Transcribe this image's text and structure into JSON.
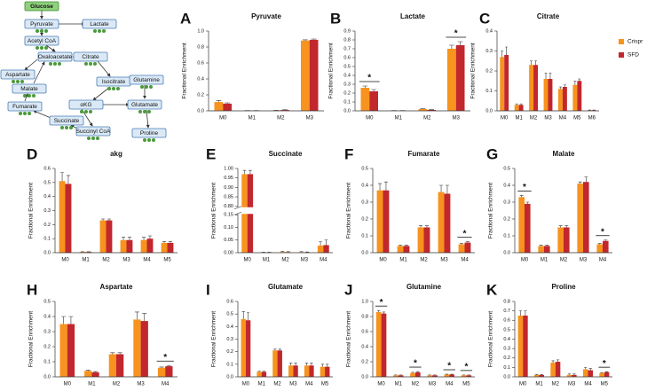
{
  "diagram": {
    "nodes": [
      "Glucose",
      "Pyruvate",
      "Lactate",
      "Acetyl CoA",
      "Oxaloacetate",
      "Citrate",
      "Aspartate",
      "Malate",
      "Isocitrate",
      "Glutamine",
      "Fumarate",
      "αKG",
      "Glutamate",
      "Succinate",
      "Succinyl CoA",
      "Proline"
    ]
  },
  "chart_data": [
    {
      "type": "bar",
      "panel": "A",
      "title": "Pyruvate",
      "y_label": "Fractional Enrichment",
      "categories": [
        "M0",
        "M1",
        "M2",
        "M3"
      ],
      "series": [
        {
          "name": "Crispr",
          "color": "#f7931e",
          "values": [
            0.11,
            0.003,
            0.005,
            0.88
          ],
          "errors": [
            0.02,
            0.001,
            0.002,
            0.01
          ]
        },
        {
          "name": "SFD",
          "color": "#c1272d",
          "values": [
            0.09,
            0.002,
            0.01,
            0.89
          ],
          "errors": [
            0.01,
            0.001,
            0.003,
            0.01
          ]
        }
      ],
      "ylim": [
        0,
        1
      ],
      "yticks": [
        {
          "value": 0,
          "label": "0.0"
        },
        0.2,
        0.4,
        0.6,
        0.8,
        {
          "value": 1,
          "label": "1.0"
        }
      ],
      "annotations": []
    },
    {
      "type": "bar",
      "panel": "B",
      "title": "Lactate",
      "y_label": "Fractional Enrichment",
      "categories": [
        "M0",
        "M1",
        "M2",
        "M3"
      ],
      "series": [
        {
          "name": "Crispr",
          "color": "#f7931e",
          "values": [
            0.26,
            0.002,
            0.02,
            0.7
          ],
          "errors": [
            0.02,
            0.001,
            0.003,
            0.04
          ]
        },
        {
          "name": "SFD",
          "color": "#c1272d",
          "values": [
            0.22,
            0.002,
            0.01,
            0.74
          ],
          "errors": [
            0.02,
            0.001,
            0.003,
            0.04
          ]
        }
      ],
      "ylim": [
        0,
        0.9
      ],
      "yticks": [
        {
          "value": 0,
          "label": "0.0"
        },
        0.1,
        0.2,
        0.3,
        0.4,
        0.5,
        0.6,
        0.7,
        0.8,
        0.9
      ],
      "annotations": [
        {
          "text": "*",
          "at": "M0"
        },
        {
          "text": "*",
          "at": "M3"
        }
      ]
    },
    {
      "type": "bar",
      "panel": "C",
      "title": "Citrate",
      "y_label": "Fractional Enrichment",
      "categories": [
        "M0",
        "M1",
        "M2",
        "M3",
        "M4",
        "M5",
        "M6"
      ],
      "series": [
        {
          "name": "Crispr",
          "color": "#f7931e",
          "values": [
            0.27,
            0.03,
            0.23,
            0.16,
            0.11,
            0.13,
            0.003
          ],
          "errors": [
            0.03,
            0.005,
            0.02,
            0.03,
            0.01,
            0.02,
            0.001
          ]
        },
        {
          "name": "SFD",
          "color": "#c1272d",
          "values": [
            0.28,
            0.03,
            0.23,
            0.16,
            0.12,
            0.15,
            0.003
          ],
          "errors": [
            0.04,
            0.005,
            0.02,
            0.03,
            0.01,
            0.01,
            0.001
          ]
        }
      ],
      "ylim": [
        0,
        0.4
      ],
      "yticks": [
        {
          "value": 0,
          "label": "0.0"
        },
        0.1,
        0.2,
        0.3,
        0.4
      ],
      "legend": "right",
      "annotations": []
    },
    {
      "type": "bar",
      "panel": "D",
      "title": "akg",
      "y_label": "Fractional Enrichment",
      "categories": [
        "M0",
        "M1",
        "M2",
        "M3",
        "M4",
        "M5"
      ],
      "series": [
        {
          "name": "Crispr",
          "color": "#f7931e",
          "values": [
            0.51,
            0.005,
            0.23,
            0.09,
            0.09,
            0.07
          ],
          "errors": [
            0.06,
            0.002,
            0.01,
            0.02,
            0.02,
            0.01
          ]
        },
        {
          "name": "SFD",
          "color": "#c1272d",
          "values": [
            0.49,
            0.005,
            0.23,
            0.09,
            0.1,
            0.07
          ],
          "errors": [
            0.06,
            0.002,
            0.01,
            0.02,
            0.02,
            0.01
          ]
        }
      ],
      "ylim": [
        0,
        0.6
      ],
      "yticks": [
        {
          "value": 0,
          "label": "0.0"
        },
        0.1,
        0.2,
        0.3,
        0.4,
        0.5,
        0.6
      ],
      "annotations": []
    },
    {
      "type": "bar",
      "panel": "E",
      "title": "Succinate",
      "y_label": "Fractional Enrichment",
      "categories": [
        "M0",
        "M1",
        "M2",
        "M3",
        "M4"
      ],
      "series": [
        {
          "name": "Crispr",
          "color": "#f7931e",
          "values": [
            0.97,
            0.001,
            0.003,
            0.002,
            0.028
          ],
          "errors": [
            0.02,
            0.001,
            0.002,
            0.002,
            0.015
          ]
        },
        {
          "name": "SFD",
          "color": "#c1272d",
          "values": [
            0.97,
            0.001,
            0.002,
            0.001,
            0.03
          ],
          "errors": [
            0.02,
            0.001,
            0.002,
            0.002,
            0.02
          ]
        }
      ],
      "ylim": [
        0,
        1
      ],
      "y_break": [
        0.15,
        0.8
      ],
      "yticks": [
        {
          "value": 0,
          "label": "0.00"
        },
        0.05,
        {
          "value": 0.1,
          "label": "0.10"
        },
        0.15,
        {
          "value": 0.8,
          "label": "0.80"
        },
        0.85,
        {
          "value": 0.9,
          "label": "0.90"
        },
        0.95,
        {
          "value": 1,
          "label": "1.00"
        }
      ],
      "annotations": []
    },
    {
      "type": "bar",
      "panel": "F",
      "title": "Fumarate",
      "y_label": "Fractional Enrichment",
      "categories": [
        "M0",
        "M1",
        "M2",
        "M3",
        "M4"
      ],
      "series": [
        {
          "name": "Crispr",
          "color": "#f7931e",
          "values": [
            0.37,
            0.04,
            0.15,
            0.36,
            0.05
          ],
          "errors": [
            0.04,
            0.005,
            0.01,
            0.04,
            0.005
          ]
        },
        {
          "name": "SFD",
          "color": "#c1272d",
          "values": [
            0.37,
            0.04,
            0.15,
            0.35,
            0.06
          ],
          "errors": [
            0.05,
            0.005,
            0.01,
            0.05,
            0.005
          ]
        }
      ],
      "ylim": [
        0,
        0.5
      ],
      "yticks": [
        {
          "value": 0,
          "label": "0.0"
        },
        0.1,
        0.2,
        0.3,
        0.4,
        0.5
      ],
      "annotations": [
        {
          "text": "*",
          "at": "M4"
        }
      ]
    },
    {
      "type": "bar",
      "panel": "G",
      "title": "Malate",
      "y_label": "Fractional Enrichment",
      "categories": [
        "M0",
        "M1",
        "M2",
        "M3",
        "M4"
      ],
      "series": [
        {
          "name": "Crispr",
          "color": "#f7931e",
          "values": [
            0.33,
            0.04,
            0.15,
            0.41,
            0.05
          ],
          "errors": [
            0.01,
            0.005,
            0.01,
            0.01,
            0.005
          ]
        },
        {
          "name": "SFD",
          "color": "#c1272d",
          "values": [
            0.29,
            0.04,
            0.15,
            0.42,
            0.07
          ],
          "errors": [
            0.01,
            0.005,
            0.01,
            0.03,
            0.005
          ]
        }
      ],
      "ylim": [
        0,
        0.5
      ],
      "yticks": [
        {
          "value": 0,
          "label": "0.0"
        },
        0.1,
        0.2,
        0.3,
        0.4,
        0.5
      ],
      "annotations": [
        {
          "text": "*",
          "at": "M0"
        },
        {
          "text": "*",
          "at": "M4"
        }
      ]
    },
    {
      "type": "bar",
      "panel": "H",
      "title": "Aspartate",
      "y_label": "Fractional Enrichment",
      "x_label": "isotopalouges",
      "categories": [
        "M0",
        "M1",
        "M2",
        "M3",
        "M4"
      ],
      "series": [
        {
          "name": "Crispr",
          "color": "#f7931e",
          "values": [
            0.35,
            0.04,
            0.15,
            0.38,
            0.06
          ],
          "errors": [
            0.05,
            0.005,
            0.01,
            0.05,
            0.005
          ]
        },
        {
          "name": "SFD",
          "color": "#c1272d",
          "values": [
            0.35,
            0.03,
            0.15,
            0.37,
            0.07
          ],
          "errors": [
            0.05,
            0.005,
            0.01,
            0.05,
            0.005
          ]
        }
      ],
      "ylim": [
        0,
        0.5
      ],
      "yticks": [
        {
          "value": 0,
          "label": "0.0"
        },
        0.1,
        0.2,
        0.3,
        0.4,
        0.5
      ],
      "annotations": [
        {
          "text": "*",
          "at": "M4"
        }
      ]
    },
    {
      "type": "bar",
      "panel": "I",
      "title": "Glutamate",
      "y_label": "Fractional Enrichment",
      "categories": [
        "M0",
        "M1",
        "M2",
        "M3",
        "M4",
        "M5"
      ],
      "series": [
        {
          "name": "Crispr",
          "color": "#f7931e",
          "values": [
            0.46,
            0.04,
            0.21,
            0.09,
            0.09,
            0.08
          ],
          "errors": [
            0.06,
            0.005,
            0.01,
            0.02,
            0.02,
            0.02
          ]
        },
        {
          "name": "SFD",
          "color": "#c1272d",
          "values": [
            0.45,
            0.04,
            0.21,
            0.09,
            0.09,
            0.08
          ],
          "errors": [
            0.06,
            0.005,
            0.01,
            0.02,
            0.02,
            0.02
          ]
        }
      ],
      "ylim": [
        0,
        0.6
      ],
      "yticks": [
        {
          "value": 0,
          "label": "0.0"
        },
        0.1,
        0.2,
        0.3,
        0.4,
        0.5,
        0.6
      ],
      "annotations": []
    },
    {
      "type": "bar",
      "panel": "J",
      "title": "Glutamine",
      "y_label": "Fractional Enrichment",
      "categories": [
        "M0",
        "M1",
        "M2",
        "M3",
        "M4",
        "M5"
      ],
      "series": [
        {
          "name": "Crispr",
          "color": "#f7931e",
          "values": [
            0.86,
            0.02,
            0.05,
            0.02,
            0.03,
            0.02
          ],
          "errors": [
            0.02,
            0.005,
            0.01,
            0.005,
            0.005,
            0.005
          ]
        },
        {
          "name": "SFD",
          "color": "#c1272d",
          "values": [
            0.84,
            0.02,
            0.06,
            0.02,
            0.03,
            0.02
          ],
          "errors": [
            0.02,
            0.005,
            0.01,
            0.005,
            0.005,
            0.005
          ]
        }
      ],
      "ylim": [
        0,
        1
      ],
      "yticks": [
        {
          "value": 0,
          "label": "0.0"
        },
        0.2,
        0.4,
        0.6,
        0.8,
        {
          "value": 1,
          "label": "1.0"
        }
      ],
      "annotations": [
        {
          "text": "*",
          "at": "M0"
        },
        {
          "text": "*",
          "at": "M2"
        },
        {
          "text": "*",
          "at": "M4"
        },
        {
          "text": "*",
          "at": "M5"
        }
      ]
    },
    {
      "type": "bar",
      "panel": "K",
      "title": "Proline",
      "y_label": "Fractional Enrichment",
      "categories": [
        "M0",
        "M1",
        "M2",
        "M3",
        "M4",
        "M5"
      ],
      "series": [
        {
          "name": "Crispr",
          "color": "#f7931e",
          "values": [
            0.65,
            0.02,
            0.15,
            0.02,
            0.08,
            0.04
          ],
          "errors": [
            0.05,
            0.005,
            0.02,
            0.01,
            0.02,
            0.005
          ]
        },
        {
          "name": "SFD",
          "color": "#c1272d",
          "values": [
            0.65,
            0.02,
            0.16,
            0.02,
            0.07,
            0.05
          ],
          "errors": [
            0.05,
            0.005,
            0.02,
            0.01,
            0.02,
            0.005
          ]
        }
      ],
      "ylim": [
        0,
        0.8
      ],
      "yticks": [
        {
          "value": 0,
          "label": "0.0"
        },
        0.1,
        0.2,
        0.3,
        0.4,
        0.5,
        0.6,
        0.7,
        0.8
      ],
      "annotations": [
        {
          "text": "*",
          "at": "M5"
        }
      ]
    }
  ]
}
